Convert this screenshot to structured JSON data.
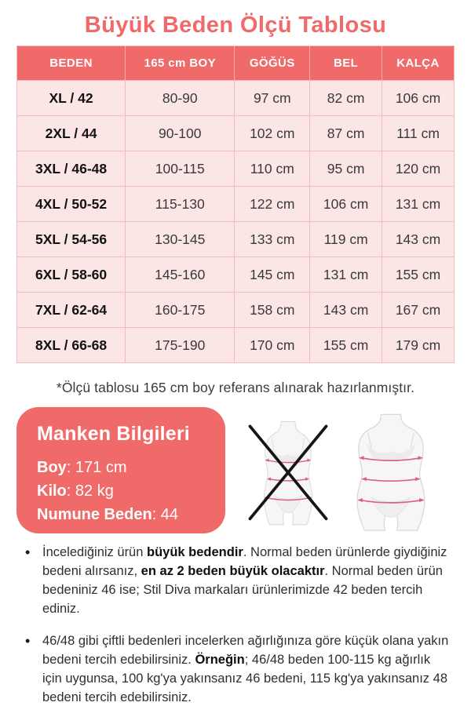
{
  "title": "Büyük Beden Ölçü Tablosu",
  "table": {
    "headers": [
      "BEDEN",
      "165 cm BOY",
      "GÖĞÜS",
      "BEL",
      "KALÇA"
    ],
    "rows": [
      [
        "XL / 42",
        "80-90",
        "97 cm",
        "82 cm",
        "106 cm"
      ],
      [
        "2XL / 44",
        "90-100",
        "102 cm",
        "87 cm",
        "111 cm"
      ],
      [
        "3XL / 46-48",
        "100-115",
        "110 cm",
        "95 cm",
        "120 cm"
      ],
      [
        "4XL / 50-52",
        "115-130",
        "122 cm",
        "106 cm",
        "131 cm"
      ],
      [
        "5XL / 54-56",
        "130-145",
        "133 cm",
        "119 cm",
        "143 cm"
      ],
      [
        "6XL / 58-60",
        "145-160",
        "145 cm",
        "131 cm",
        "155 cm"
      ],
      [
        "7XL / 62-64",
        "160-175",
        "158 cm",
        "143 cm",
        "167 cm"
      ],
      [
        "8XL / 66-68",
        "175-190",
        "170 cm",
        "155 cm",
        "179 cm"
      ]
    ]
  },
  "footnote": "*Ölçü tablosu 165 cm boy referans alınarak hazırlanmıştır.",
  "model_info": {
    "heading": "Manken Bilgileri",
    "fields": [
      {
        "label": "Boy",
        "value": "171 cm"
      },
      {
        "label": "Kilo",
        "value": "82 kg"
      },
      {
        "label": "Numune Beden",
        "value": "44"
      }
    ]
  },
  "figures": {
    "left_icon": "slim-body-crossed-icon",
    "right_icon": "plus-size-body-icon"
  },
  "notes": [
    {
      "segments": [
        {
          "t": "İncelediğiniz ürün ",
          "b": false
        },
        {
          "t": "büyük bedendir",
          "b": true
        },
        {
          "t": ". Normal beden ürünlerde giydiğiniz bedeni alırsanız, ",
          "b": false
        },
        {
          "t": "en az 2 beden büyük olacaktır",
          "b": true
        },
        {
          "t": ". Normal beden ürün bedeniniz 46 ise; Stil Diva markaları ürünlerimizde 42 beden tercih ediniz.",
          "b": false
        }
      ]
    },
    {
      "segments": [
        {
          "t": "46/48 gibi çiftli bedenleri incelerken ağırlığınıza göre küçük olana yakın bedeni tercih edebilirsiniz. ",
          "b": false
        },
        {
          "t": "Örneğin",
          "b": true
        },
        {
          "t": "; 46/48 beden 100-115 kg ağırlık için uygunsa, 100 kg'ya yakınsanız 46 bedeni, 115 kg'ya yakınsanız 48 bedeni tercih edebilirsiniz.",
          "b": false
        }
      ]
    }
  ],
  "colors": {
    "accent": "#f16a6a",
    "row_bg": "#fbe5e5",
    "table_border": "#f5bcbc",
    "measure_line": "#d95e92",
    "text_dark": "#2e2e2e"
  }
}
